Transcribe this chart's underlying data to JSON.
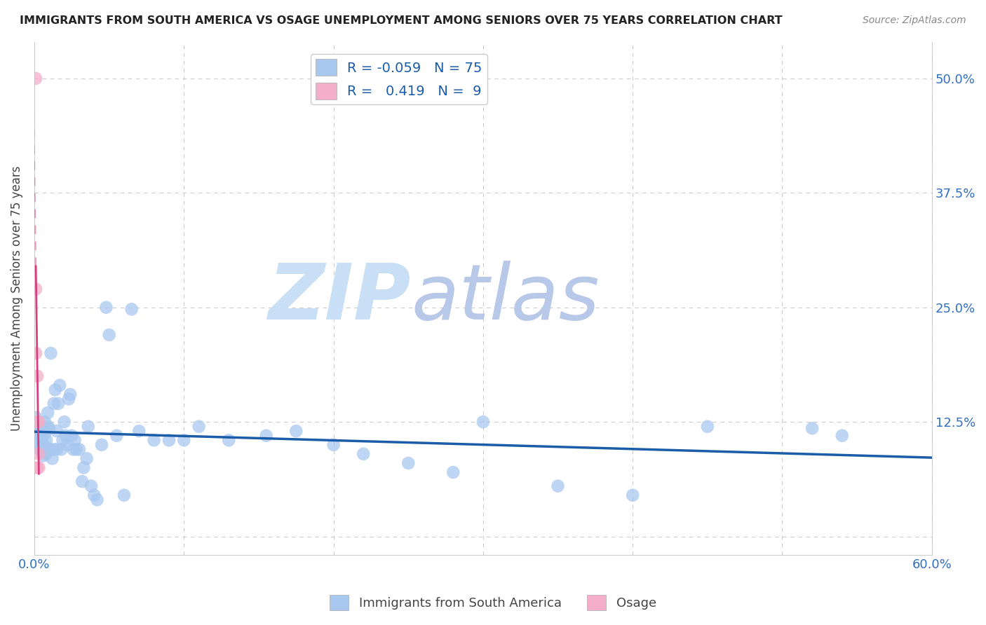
{
  "title": "IMMIGRANTS FROM SOUTH AMERICA VS OSAGE UNEMPLOYMENT AMONG SENIORS OVER 75 YEARS CORRELATION CHART",
  "source": "Source: ZipAtlas.com",
  "ylabel": "Unemployment Among Seniors over 75 years",
  "xlim": [
    0.0,
    0.6
  ],
  "ylim": [
    -0.02,
    0.54
  ],
  "xticks": [
    0.0,
    0.1,
    0.2,
    0.3,
    0.4,
    0.5,
    0.6
  ],
  "xticklabels": [
    "0.0%",
    "",
    "",
    "",
    "",
    "",
    "60.0%"
  ],
  "yticks": [
    0.0,
    0.125,
    0.25,
    0.375,
    0.5
  ],
  "yticklabels_right": [
    "",
    "12.5%",
    "25.0%",
    "37.5%",
    "50.0%"
  ],
  "grid_color": "#cccccc",
  "background_color": "#ffffff",
  "blue_color": "#a8c8f0",
  "pink_color": "#f4aec8",
  "blue_line_color": "#1a5ca8",
  "pink_line_color": "#d44080",
  "R_blue": -0.059,
  "N_blue": 75,
  "R_pink": 0.419,
  "N_pink": 9,
  "legend_label_blue": "Immigrants from South America",
  "legend_label_pink": "Osage",
  "blue_scatter_x": [
    0.001,
    0.002,
    0.002,
    0.003,
    0.003,
    0.004,
    0.004,
    0.004,
    0.005,
    0.005,
    0.005,
    0.006,
    0.006,
    0.006,
    0.007,
    0.007,
    0.007,
    0.008,
    0.008,
    0.009,
    0.009,
    0.01,
    0.01,
    0.011,
    0.012,
    0.013,
    0.013,
    0.014,
    0.015,
    0.015,
    0.016,
    0.017,
    0.018,
    0.019,
    0.02,
    0.021,
    0.022,
    0.023,
    0.024,
    0.025,
    0.026,
    0.027,
    0.028,
    0.03,
    0.032,
    0.033,
    0.035,
    0.036,
    0.038,
    0.04,
    0.042,
    0.045,
    0.048,
    0.05,
    0.055,
    0.06,
    0.065,
    0.07,
    0.08,
    0.09,
    0.1,
    0.11,
    0.13,
    0.155,
    0.175,
    0.2,
    0.22,
    0.25,
    0.28,
    0.3,
    0.35,
    0.4,
    0.45,
    0.52,
    0.54
  ],
  "blue_scatter_y": [
    0.13,
    0.12,
    0.1,
    0.11,
    0.125,
    0.105,
    0.115,
    0.095,
    0.108,
    0.092,
    0.118,
    0.1,
    0.115,
    0.088,
    0.098,
    0.112,
    0.125,
    0.09,
    0.105,
    0.12,
    0.135,
    0.095,
    0.118,
    0.2,
    0.085,
    0.145,
    0.095,
    0.16,
    0.095,
    0.115,
    0.145,
    0.165,
    0.095,
    0.105,
    0.125,
    0.11,
    0.1,
    0.15,
    0.155,
    0.11,
    0.095,
    0.105,
    0.095,
    0.095,
    0.06,
    0.075,
    0.085,
    0.12,
    0.055,
    0.045,
    0.04,
    0.1,
    0.25,
    0.22,
    0.11,
    0.045,
    0.248,
    0.115,
    0.105,
    0.105,
    0.105,
    0.12,
    0.105,
    0.11,
    0.115,
    0.1,
    0.09,
    0.08,
    0.07,
    0.125,
    0.055,
    0.045,
    0.12,
    0.118,
    0.11
  ],
  "pink_scatter_x": [
    0.001,
    0.001,
    0.001,
    0.002,
    0.002,
    0.002,
    0.003,
    0.003,
    0.003
  ],
  "pink_scatter_y": [
    0.5,
    0.27,
    0.2,
    0.175,
    0.125,
    0.075,
    0.125,
    0.09,
    0.075
  ],
  "watermark_zip": "ZIP",
  "watermark_atlas": "atlas",
  "watermark_color_zip": "#c8dff5",
  "watermark_color_atlas": "#b8c8e8",
  "scatter_size": 180,
  "tick_color": "#3070c0"
}
